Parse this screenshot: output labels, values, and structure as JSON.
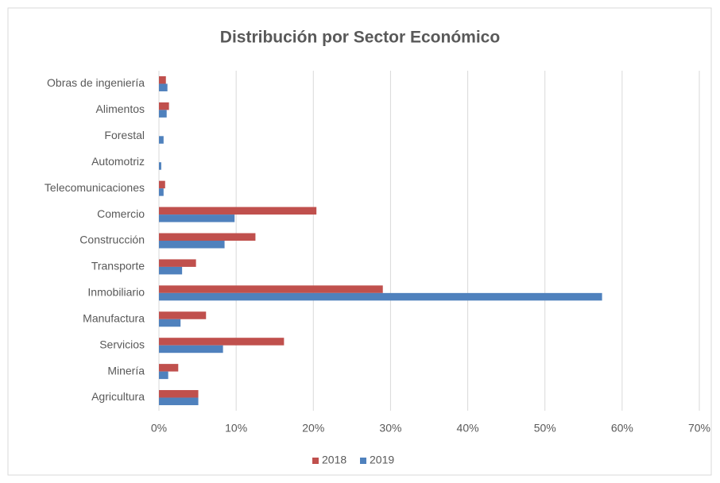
{
  "chart_data": {
    "type": "hbar",
    "title": "Distribución por Sector Económico",
    "categories": [
      "Obras de ingeniería",
      "Alimentos",
      "Forestal",
      "Automotriz",
      "Telecomunicaciones",
      "Comercio",
      "Construcción",
      "Transporte",
      "Inmobiliario",
      "Manufactura",
      "Servicios",
      "Minería",
      "Agricultura"
    ],
    "series": [
      {
        "name": "2018",
        "color": "#c0504d",
        "values": [
          0.9,
          1.3,
          0,
          0,
          0.8,
          20.4,
          12.5,
          4.8,
          29.0,
          6.1,
          16.2,
          2.5,
          5.1
        ]
      },
      {
        "name": "2019",
        "color": "#4f81bd",
        "values": [
          1.1,
          1.0,
          0.6,
          0.3,
          0.6,
          9.8,
          8.5,
          3.0,
          57.4,
          2.8,
          8.3,
          1.2,
          5.1
        ]
      }
    ],
    "xlim": [
      0,
      70
    ],
    "xticks": [
      {
        "value": 0,
        "label": "0%"
      },
      {
        "value": 10,
        "label": "10%"
      },
      {
        "value": 20,
        "label": "20%"
      },
      {
        "value": 30,
        "label": "30%"
      },
      {
        "value": 40,
        "label": "40%"
      },
      {
        "value": 50,
        "label": "50%"
      },
      {
        "value": 60,
        "label": "60%"
      },
      {
        "value": 70,
        "label": "70%"
      }
    ],
    "grid": true,
    "legend": "bottom"
  }
}
